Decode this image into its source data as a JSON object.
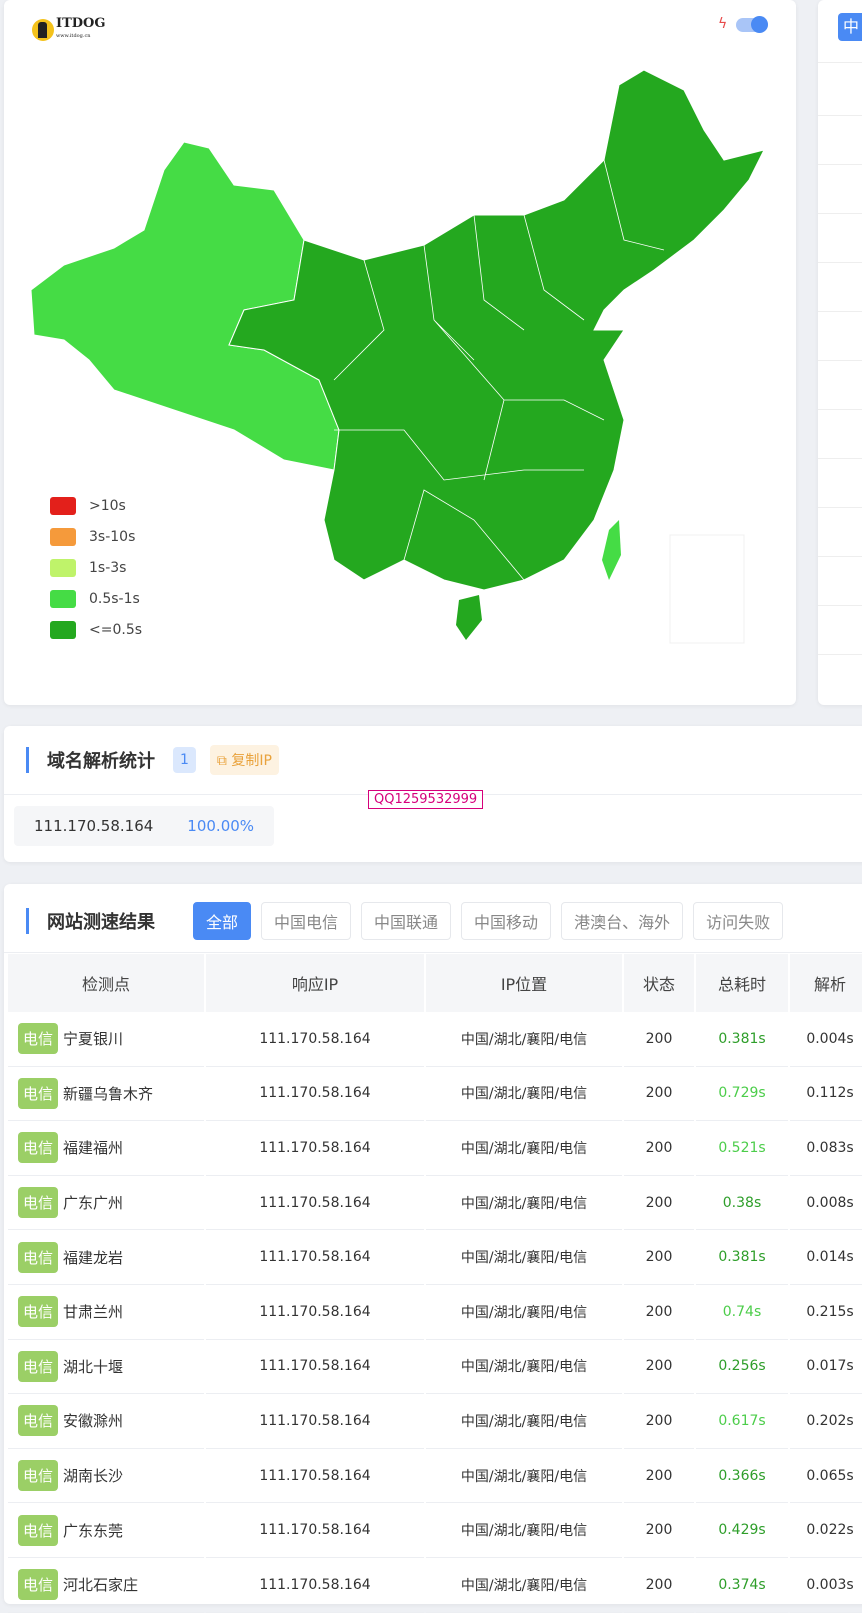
{
  "header": {
    "logo_text": "ITDOG",
    "logo_sub": "www.itdog.cn",
    "lang_button": "中"
  },
  "map": {
    "legend": [
      {
        "label": ">10s",
        "color": "#e3201b"
      },
      {
        "label": "3s-10s",
        "color": "#f59a3b"
      },
      {
        "label": "1s-3s",
        "color": "#bff36a"
      },
      {
        "label": "0.5s-1s",
        "color": "#45dc45"
      },
      {
        "label": "<=0.5s",
        "color": "#24a81f"
      }
    ]
  },
  "dns": {
    "title": "域名解析统计",
    "count": "1",
    "copy_label": "复制IP",
    "ip": "111.170.58.164",
    "percent": "100.00%"
  },
  "watermark": "QQ1259532999",
  "results": {
    "title": "网站测速结果",
    "filters": [
      "全部",
      "中国电信",
      "中国联通",
      "中国移动",
      "港澳台、海外",
      "访问失败"
    ],
    "columns": [
      "检测点",
      "响应IP",
      "IP位置",
      "状态",
      "总耗时",
      "解析"
    ],
    "rows": [
      {
        "isp": "电信",
        "node": "宁夏银川",
        "ip": "111.170.58.164",
        "loc": "中国/湖北/襄阳/电信",
        "status": "200",
        "total": "0.381s",
        "dns": "0.004s",
        "speed": "fast"
      },
      {
        "isp": "电信",
        "node": "新疆乌鲁木齐",
        "ip": "111.170.58.164",
        "loc": "中国/湖北/襄阳/电信",
        "status": "200",
        "total": "0.729s",
        "dns": "0.112s",
        "speed": "mid"
      },
      {
        "isp": "电信",
        "node": "福建福州",
        "ip": "111.170.58.164",
        "loc": "中国/湖北/襄阳/电信",
        "status": "200",
        "total": "0.521s",
        "dns": "0.083s",
        "speed": "mid"
      },
      {
        "isp": "电信",
        "node": "广东广州",
        "ip": "111.170.58.164",
        "loc": "中国/湖北/襄阳/电信",
        "status": "200",
        "total": "0.38s",
        "dns": "0.008s",
        "speed": "fast"
      },
      {
        "isp": "电信",
        "node": "福建龙岩",
        "ip": "111.170.58.164",
        "loc": "中国/湖北/襄阳/电信",
        "status": "200",
        "total": "0.381s",
        "dns": "0.014s",
        "speed": "fast"
      },
      {
        "isp": "电信",
        "node": "甘肃兰州",
        "ip": "111.170.58.164",
        "loc": "中国/湖北/襄阳/电信",
        "status": "200",
        "total": "0.74s",
        "dns": "0.215s",
        "speed": "mid"
      },
      {
        "isp": "电信",
        "node": "湖北十堰",
        "ip": "111.170.58.164",
        "loc": "中国/湖北/襄阳/电信",
        "status": "200",
        "total": "0.256s",
        "dns": "0.017s",
        "speed": "fast"
      },
      {
        "isp": "电信",
        "node": "安徽滁州",
        "ip": "111.170.58.164",
        "loc": "中国/湖北/襄阳/电信",
        "status": "200",
        "total": "0.617s",
        "dns": "0.202s",
        "speed": "mid"
      },
      {
        "isp": "电信",
        "node": "湖南长沙",
        "ip": "111.170.58.164",
        "loc": "中国/湖北/襄阳/电信",
        "status": "200",
        "total": "0.366s",
        "dns": "0.065s",
        "speed": "fast"
      },
      {
        "isp": "电信",
        "node": "广东东莞",
        "ip": "111.170.58.164",
        "loc": "中国/湖北/襄阳/电信",
        "status": "200",
        "total": "0.429s",
        "dns": "0.022s",
        "speed": "fast"
      },
      {
        "isp": "电信",
        "node": "河北石家庄",
        "ip": "111.170.58.164",
        "loc": "中国/湖北/襄阳/电信",
        "status": "200",
        "total": "0.374s",
        "dns": "0.003s",
        "speed": "fast"
      }
    ]
  }
}
